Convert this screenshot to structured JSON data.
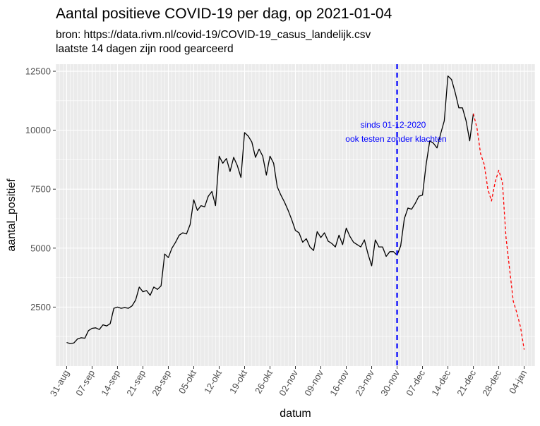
{
  "chart_data": {
    "type": "line",
    "title": "Aantal positieve COVID-19 per dag, op 2021-01-04",
    "subtitle_lines": [
      "bron: https://data.rivm.nl/covid-19/COVID-19_casus_landelijk.csv",
      "laatste 14 dagen zijn rood gearceerd"
    ],
    "xlabel": "datum",
    "ylabel": "aantal_positief",
    "ylim": [
      0,
      12800
    ],
    "yticks": [
      2500,
      5000,
      7500,
      10000,
      12500
    ],
    "ytick_labels": [
      "2500",
      "5000",
      "7500",
      "10000",
      "12500"
    ],
    "xticks": [
      {
        "date": "2020-08-31",
        "label": "31-aug"
      },
      {
        "date": "2020-09-07",
        "label": "07-sep"
      },
      {
        "date": "2020-09-14",
        "label": "14-sep"
      },
      {
        "date": "2020-09-21",
        "label": "21-sep"
      },
      {
        "date": "2020-09-28",
        "label": "28-sep"
      },
      {
        "date": "2020-10-05",
        "label": "05-okt"
      },
      {
        "date": "2020-10-12",
        "label": "12-okt"
      },
      {
        "date": "2020-10-19",
        "label": "19-okt"
      },
      {
        "date": "2020-10-26",
        "label": "26-okt"
      },
      {
        "date": "2020-11-02",
        "label": "02-nov"
      },
      {
        "date": "2020-11-09",
        "label": "09-nov"
      },
      {
        "date": "2020-11-16",
        "label": "16-nov"
      },
      {
        "date": "2020-11-23",
        "label": "23-nov"
      },
      {
        "date": "2020-11-30",
        "label": "30-nov"
      },
      {
        "date": "2020-12-07",
        "label": "07-dec"
      },
      {
        "date": "2020-12-14",
        "label": "14-dec"
      },
      {
        "date": "2020-12-21",
        "label": "21-dec"
      },
      {
        "date": "2020-12-28",
        "label": "28-dec"
      },
      {
        "date": "2021-01-04",
        "label": "04-jan"
      }
    ],
    "grid": true,
    "colors": {
      "panel": "#ebebeb",
      "grid": "#ffffff",
      "line": "#000000",
      "recent": "#ff0000",
      "vline": "#0000ff"
    },
    "series": [
      {
        "style": "solid",
        "x": [
          "2020-08-31",
          "2020-09-01",
          "2020-09-02",
          "2020-09-03",
          "2020-09-04",
          "2020-09-05",
          "2020-09-06",
          "2020-09-07",
          "2020-09-08",
          "2020-09-09",
          "2020-09-10",
          "2020-09-11",
          "2020-09-12",
          "2020-09-13",
          "2020-09-14",
          "2020-09-15",
          "2020-09-16",
          "2020-09-17",
          "2020-09-18",
          "2020-09-19",
          "2020-09-20",
          "2020-09-21",
          "2020-09-22",
          "2020-09-23",
          "2020-09-24",
          "2020-09-25",
          "2020-09-26",
          "2020-09-27",
          "2020-09-28",
          "2020-09-29",
          "2020-09-30",
          "2020-10-01",
          "2020-10-02",
          "2020-10-03",
          "2020-10-04",
          "2020-10-05",
          "2020-10-06",
          "2020-10-07",
          "2020-10-08",
          "2020-10-09",
          "2020-10-10",
          "2020-10-11",
          "2020-10-12",
          "2020-10-13",
          "2020-10-14",
          "2020-10-15",
          "2020-10-16",
          "2020-10-17",
          "2020-10-18",
          "2020-10-19",
          "2020-10-20",
          "2020-10-21",
          "2020-10-22",
          "2020-10-23",
          "2020-10-24",
          "2020-10-25",
          "2020-10-26",
          "2020-10-27",
          "2020-10-28",
          "2020-10-29",
          "2020-10-30",
          "2020-10-31",
          "2020-11-01",
          "2020-11-02",
          "2020-11-03",
          "2020-11-04",
          "2020-11-05",
          "2020-11-06",
          "2020-11-07",
          "2020-11-08",
          "2020-11-09",
          "2020-11-10",
          "2020-11-11",
          "2020-11-12",
          "2020-11-13",
          "2020-11-14",
          "2020-11-15",
          "2020-11-16",
          "2020-11-17",
          "2020-11-18",
          "2020-11-19",
          "2020-11-20",
          "2020-11-21",
          "2020-11-22",
          "2020-11-23",
          "2020-11-24",
          "2020-11-25",
          "2020-11-26",
          "2020-11-27",
          "2020-11-28",
          "2020-11-29",
          "2020-11-30",
          "2020-12-01",
          "2020-12-02",
          "2020-12-03",
          "2020-12-04",
          "2020-12-05",
          "2020-12-06",
          "2020-12-07",
          "2020-12-08",
          "2020-12-09",
          "2020-12-10",
          "2020-12-11",
          "2020-12-12",
          "2020-12-13",
          "2020-12-14",
          "2020-12-15",
          "2020-12-16",
          "2020-12-17",
          "2020-12-18",
          "2020-12-19",
          "2020-12-20",
          "2020-12-21"
        ],
        "values": [
          1000,
          950,
          980,
          1150,
          1200,
          1180,
          1500,
          1600,
          1620,
          1550,
          1750,
          1700,
          1800,
          2450,
          2500,
          2450,
          2480,
          2450,
          2550,
          2800,
          3350,
          3150,
          3200,
          3000,
          3350,
          3250,
          3400,
          4750,
          4600,
          5000,
          5250,
          5550,
          5650,
          5600,
          6000,
          7050,
          6600,
          6800,
          6750,
          7200,
          7400,
          6800,
          8900,
          8600,
          8800,
          8250,
          8850,
          8500,
          8000,
          9900,
          9750,
          9500,
          8850,
          9200,
          8900,
          8100,
          8900,
          8600,
          7600,
          7250,
          6950,
          6600,
          6200,
          5750,
          5650,
          5250,
          5400,
          5050,
          4900,
          5700,
          5450,
          5650,
          5300,
          5200,
          5050,
          5550,
          5150,
          5850,
          5500,
          5250,
          5150,
          5050,
          5350,
          4750,
          4250,
          5350,
          5050,
          5050,
          4650,
          4850,
          4850,
          4700,
          5100,
          6250,
          6700,
          6650,
          6900,
          7200,
          7250,
          8550,
          9550,
          9450,
          9250,
          9850,
          10400,
          12300,
          12150,
          11600,
          10950,
          10950,
          10400,
          9550,
          10700
        ]
      },
      {
        "style": "dashed",
        "x": [
          "2020-12-21",
          "2020-12-22",
          "2020-12-23",
          "2020-12-24",
          "2020-12-25",
          "2020-12-26",
          "2020-12-27",
          "2020-12-28",
          "2020-12-29",
          "2020-12-30",
          "2020-12-31",
          "2021-01-01",
          "2021-01-02",
          "2021-01-03",
          "2021-01-04"
        ],
        "values": [
          10700,
          10100,
          9000,
          8550,
          7500,
          7000,
          7800,
          8300,
          7800,
          5450,
          4100,
          2750,
          2250,
          1650,
          700
        ]
      }
    ],
    "vline": {
      "date": "2020-11-30"
    },
    "annotation": {
      "line1": "sinds 01-12-2020",
      "line2": "ook testen zonder klachten"
    }
  }
}
